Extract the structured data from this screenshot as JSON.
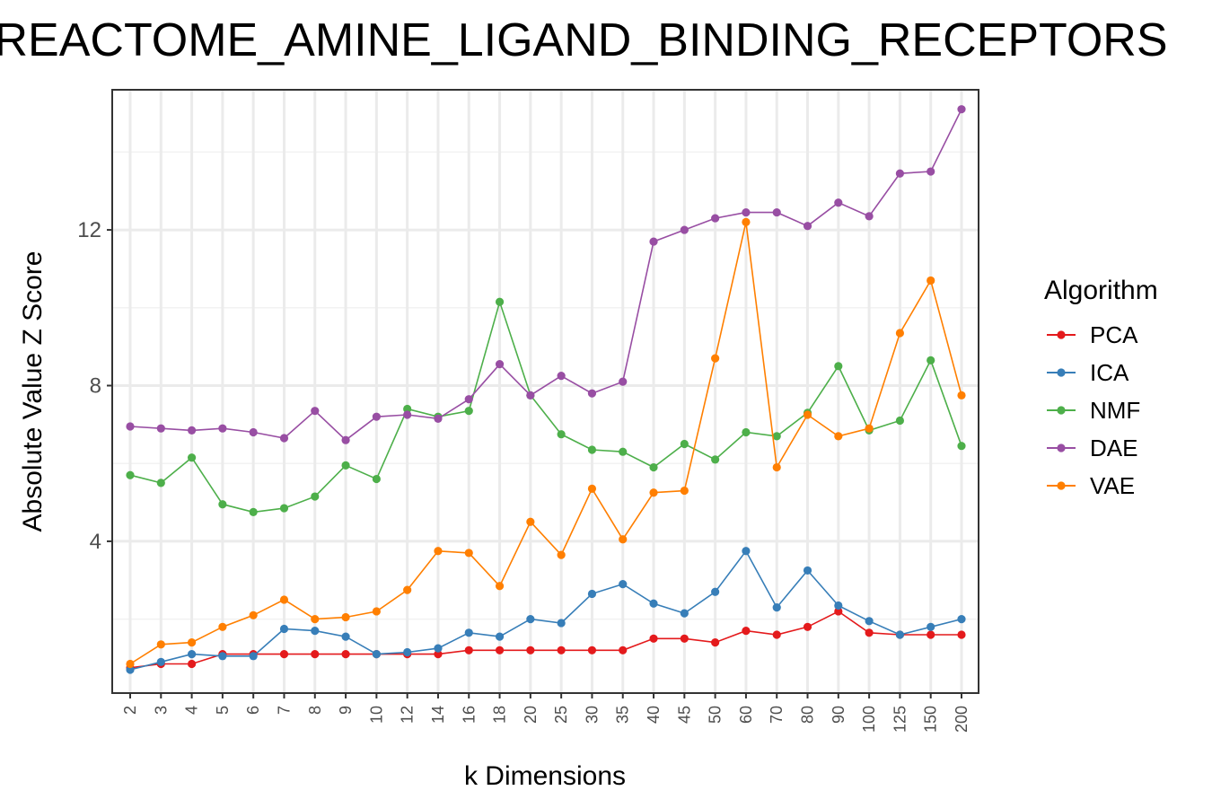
{
  "chart_data": {
    "type": "line",
    "title": "REACTOME_AMINE_LIGAND_BINDING_RECEPTORS",
    "xlabel": "k Dimensions",
    "ylabel": "Absolute Value Z Score",
    "categories": [
      "2",
      "3",
      "4",
      "5",
      "6",
      "7",
      "8",
      "9",
      "10",
      "12",
      "14",
      "16",
      "18",
      "20",
      "25",
      "30",
      "35",
      "40",
      "45",
      "50",
      "60",
      "70",
      "80",
      "90",
      "100",
      "125",
      "150",
      "200"
    ],
    "yticks": [
      4,
      8,
      12
    ],
    "ylim": [
      0.1,
      15.6
    ],
    "grid": true,
    "legend": {
      "title": "Algorithm",
      "position": "right"
    },
    "series": [
      {
        "name": "PCA",
        "color": "#E41A1C",
        "values": [
          0.75,
          0.85,
          0.85,
          1.1,
          1.1,
          1.1,
          1.1,
          1.1,
          1.1,
          1.1,
          1.1,
          1.2,
          1.2,
          1.2,
          1.2,
          1.2,
          1.2,
          1.5,
          1.5,
          1.4,
          1.7,
          1.6,
          1.8,
          2.2,
          1.65,
          1.6,
          1.6,
          1.6
        ]
      },
      {
        "name": "ICA",
        "color": "#377EB8",
        "values": [
          0.7,
          0.9,
          1.1,
          1.05,
          1.05,
          1.75,
          1.7,
          1.55,
          1.1,
          1.15,
          1.25,
          1.65,
          1.55,
          2.0,
          1.9,
          2.65,
          2.9,
          2.4,
          2.15,
          2.7,
          3.75,
          2.3,
          3.25,
          2.35,
          1.95,
          1.6,
          1.8,
          2.0
        ]
      },
      {
        "name": "NMF",
        "color": "#4DAF4A",
        "values": [
          5.7,
          5.5,
          6.15,
          4.95,
          4.75,
          4.85,
          5.15,
          5.95,
          5.6,
          7.4,
          7.2,
          7.35,
          10.15,
          7.75,
          6.75,
          6.35,
          6.3,
          5.9,
          6.5,
          6.1,
          6.8,
          6.7,
          7.3,
          8.5,
          6.85,
          7.1,
          8.65,
          6.45
        ]
      },
      {
        "name": "DAE",
        "color": "#984EA3",
        "values": [
          6.95,
          6.9,
          6.85,
          6.9,
          6.8,
          6.65,
          7.35,
          6.6,
          7.2,
          7.25,
          7.15,
          7.65,
          8.55,
          7.75,
          8.25,
          7.8,
          8.1,
          11.7,
          12.0,
          12.3,
          12.45,
          12.45,
          12.1,
          12.7,
          12.35,
          13.45,
          13.5,
          15.1
        ]
      },
      {
        "name": "VAE",
        "color": "#FF7F00",
        "values": [
          0.85,
          1.35,
          1.4,
          1.8,
          2.1,
          2.5,
          2.0,
          2.05,
          2.2,
          2.75,
          3.75,
          3.7,
          2.85,
          4.5,
          3.65,
          5.35,
          4.05,
          5.25,
          5.3,
          8.7,
          12.2,
          5.9,
          7.25,
          6.7,
          6.9,
          9.35,
          10.7,
          7.75
        ]
      }
    ]
  }
}
